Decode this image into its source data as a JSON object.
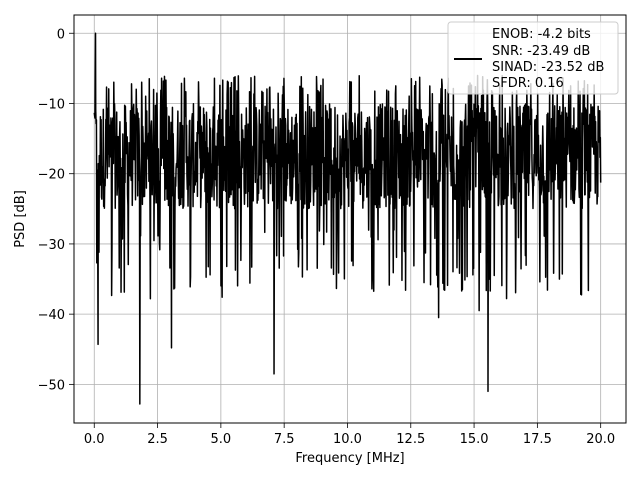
{
  "chart_data": {
    "type": "line",
    "title": "",
    "xlabel": "Frequency [MHz]",
    "ylabel": "PSD [dB]",
    "xlim": [
      -0.8,
      21.0
    ],
    "ylim": [
      -55.5,
      2.6
    ],
    "xticks": [
      0.0,
      2.5,
      5.0,
      7.5,
      10.0,
      12.5,
      15.0,
      17.5,
      20.0
    ],
    "xtick_labels": [
      "0.0",
      "2.5",
      "5.0",
      "7.5",
      "10.0",
      "12.5",
      "15.0",
      "17.5",
      "20.0"
    ],
    "yticks": [
      0,
      -10,
      -20,
      -30,
      -40,
      -50
    ],
    "ytick_labels": [
      "0",
      "−10",
      "−20",
      "−30",
      "−40",
      "−50"
    ],
    "grid": true,
    "legend_position": "top-right",
    "legend_lines": [
      "ENOB: -4.2 bits",
      "SNR: -23.49 dB",
      "SINAD: -23.52 dB",
      "SFDR: 0.16"
    ],
    "series": [
      {
        "color": "#000000",
        "x_range": [
          0,
          20
        ],
        "envelope": {
          "peak": {
            "x": 0.05,
            "y": 0
          },
          "typical_band": [
            -25,
            -10
          ],
          "upper_extent": -6,
          "notable_dips": [
            {
              "x": 0.15,
              "y": -44.3
            },
            {
              "x": 1.8,
              "y": -52.8
            },
            {
              "x": 3.05,
              "y": -44.8
            },
            {
              "x": 7.1,
              "y": -48.5
            },
            {
              "x": 15.55,
              "y": -51.0
            },
            {
              "x": 13.6,
              "y": -40.5
            },
            {
              "x": 15.2,
              "y": -39.5
            },
            {
              "x": 5.05,
              "y": -37.6
            }
          ]
        }
      }
    ]
  }
}
